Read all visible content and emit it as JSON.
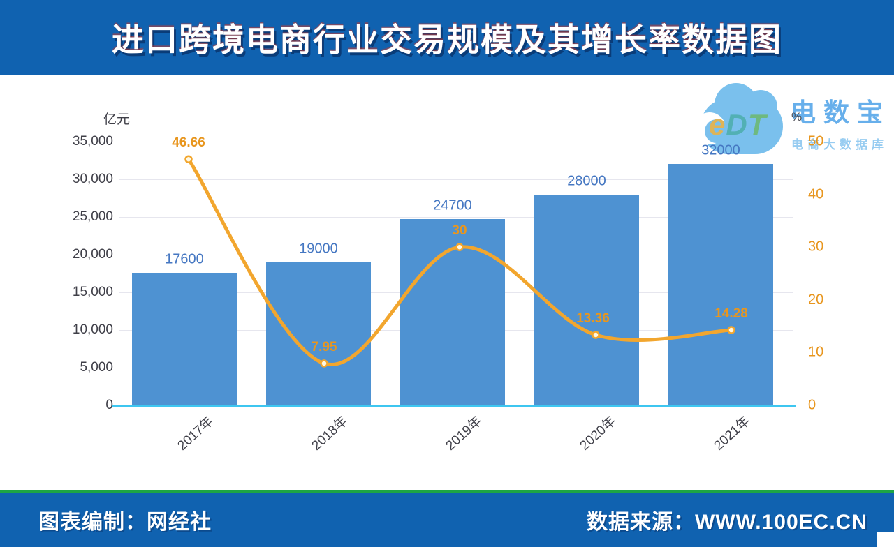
{
  "header": {
    "title": "进口跨境电商行业交易规模及其增长率数据图",
    "bg_color": "#1062b0"
  },
  "chart_data": {
    "type": "bar",
    "subtype": "combo-bar-line",
    "categories": [
      "2017年",
      "2018年",
      "2019年",
      "2020年",
      "2021年"
    ],
    "series": [
      {
        "name": "交易规模",
        "type": "bar",
        "unit": "亿元",
        "values": [
          17600,
          19000,
          24700,
          28000,
          32000
        ],
        "labels": [
          "17600",
          "19000",
          "24700",
          "28000",
          "32000"
        ],
        "color": "#4e92d2",
        "label_color": "#4577c2"
      },
      {
        "name": "增长率",
        "type": "line",
        "unit": "%",
        "values": [
          46.66,
          7.95,
          30,
          13.36,
          14.28
        ],
        "labels": [
          "46.66",
          "7.95",
          "30",
          "13.36",
          "14.28"
        ],
        "color": "#f2a62e",
        "label_color": "#e8961e"
      }
    ],
    "left_axis": {
      "title": "亿元",
      "min": 0,
      "max": 35000,
      "ticks": [
        "35,000",
        "30,000",
        "25,000",
        "20,000",
        "15,000",
        "10,000",
        "5,000",
        "0"
      ]
    },
    "right_axis": {
      "title": "%",
      "min": 0,
      "max": 50,
      "ticks": [
        "50",
        "40",
        "30",
        "20",
        "10",
        "0"
      ]
    },
    "grid": true,
    "gridline_color": "#e6e6ee",
    "baseline_color": "#3ec6f0",
    "legend": "none"
  },
  "logo": {
    "letters": [
      "e",
      "D",
      "T"
    ],
    "brand": "电数宝",
    "sub": "电商大数据库",
    "cloud_color": "#63b6ea"
  },
  "footer": {
    "left": "图表编制：网经社",
    "right": "数据来源：WWW.100EC.CN",
    "bg_color": "#1062b0",
    "accent_color": "#1da546"
  }
}
